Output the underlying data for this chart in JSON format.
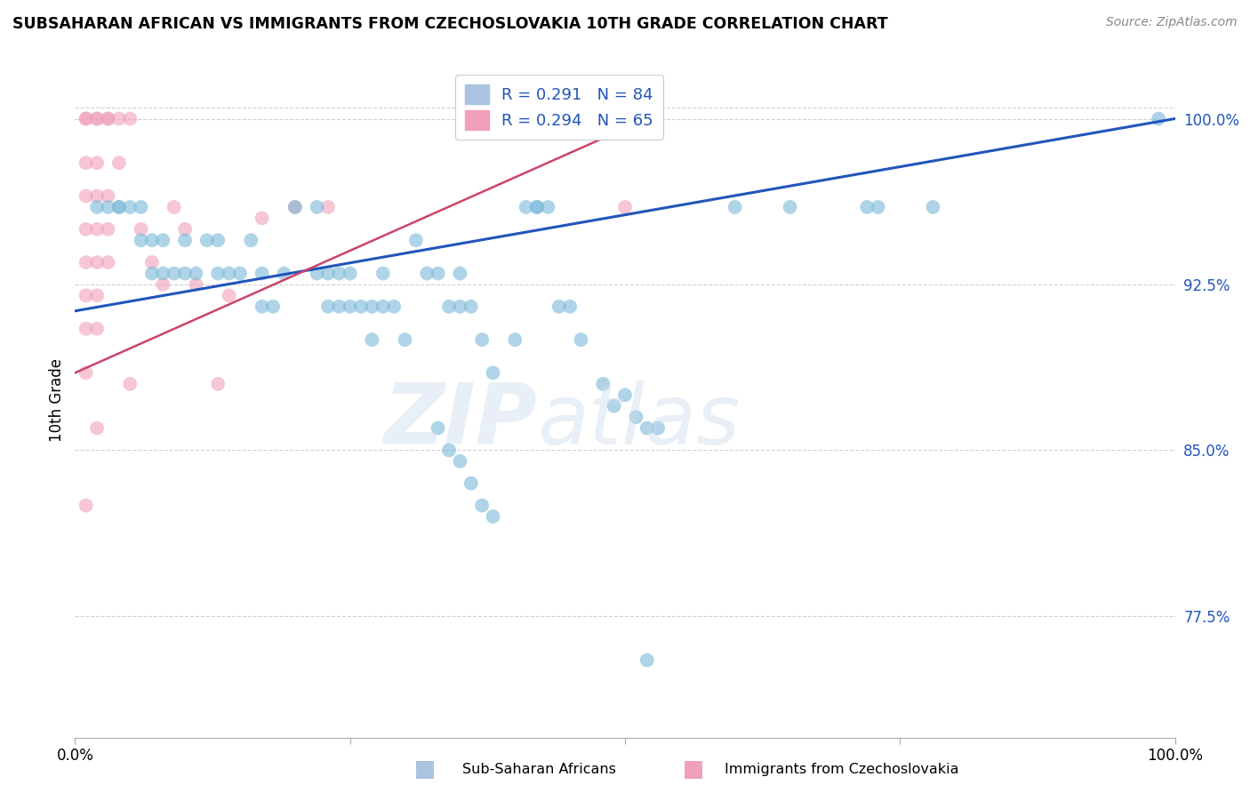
{
  "title": "SUBSAHARAN AFRICAN VS IMMIGRANTS FROM CZECHOSLOVAKIA 10TH GRADE CORRELATION CHART",
  "source": "Source: ZipAtlas.com",
  "ylabel": "10th Grade",
  "ytick_labels": [
    "100.0%",
    "92.5%",
    "85.0%",
    "77.5%"
  ],
  "ytick_values": [
    1.0,
    0.925,
    0.85,
    0.775
  ],
  "xlim": [
    0.0,
    1.0
  ],
  "ylim": [
    0.72,
    1.025
  ],
  "legend_entries": [
    {
      "label": "R = 0.291   N = 84",
      "color": "#aac4e0"
    },
    {
      "label": "R = 0.294   N = 65",
      "color": "#f0a0b8"
    }
  ],
  "blue_color": "#7ab8d8",
  "pink_color": "#f0a0b8",
  "blue_line_color": "#2255bb",
  "pink_line_color": "#cc4466",
  "watermark": "ZIPatlas",
  "blue_scatter": [
    [
      0.02,
      0.96
    ],
    [
      0.03,
      0.96
    ],
    [
      0.04,
      0.96
    ],
    [
      0.04,
      0.96
    ],
    [
      0.05,
      0.96
    ],
    [
      0.06,
      0.96
    ],
    [
      0.06,
      0.945
    ],
    [
      0.07,
      0.945
    ],
    [
      0.07,
      0.93
    ],
    [
      0.08,
      0.945
    ],
    [
      0.08,
      0.93
    ],
    [
      0.09,
      0.93
    ],
    [
      0.1,
      0.93
    ],
    [
      0.1,
      0.945
    ],
    [
      0.11,
      0.93
    ],
    [
      0.12,
      0.945
    ],
    [
      0.13,
      0.93
    ],
    [
      0.13,
      0.945
    ],
    [
      0.14,
      0.93
    ],
    [
      0.15,
      0.93
    ],
    [
      0.16,
      0.945
    ],
    [
      0.17,
      0.93
    ],
    [
      0.17,
      0.915
    ],
    [
      0.18,
      0.915
    ],
    [
      0.19,
      0.93
    ],
    [
      0.2,
      0.96
    ],
    [
      0.22,
      0.96
    ],
    [
      0.22,
      0.93
    ],
    [
      0.23,
      0.93
    ],
    [
      0.23,
      0.915
    ],
    [
      0.24,
      0.93
    ],
    [
      0.24,
      0.915
    ],
    [
      0.25,
      0.93
    ],
    [
      0.25,
      0.915
    ],
    [
      0.26,
      0.915
    ],
    [
      0.27,
      0.915
    ],
    [
      0.27,
      0.9
    ],
    [
      0.28,
      0.93
    ],
    [
      0.28,
      0.915
    ],
    [
      0.29,
      0.915
    ],
    [
      0.3,
      0.9
    ],
    [
      0.31,
      0.945
    ],
    [
      0.32,
      0.93
    ],
    [
      0.33,
      0.93
    ],
    [
      0.34,
      0.915
    ],
    [
      0.35,
      0.93
    ],
    [
      0.35,
      0.915
    ],
    [
      0.36,
      0.915
    ],
    [
      0.37,
      0.9
    ],
    [
      0.38,
      0.885
    ],
    [
      0.4,
      0.9
    ],
    [
      0.41,
      0.96
    ],
    [
      0.42,
      0.96
    ],
    [
      0.42,
      0.96
    ],
    [
      0.43,
      0.96
    ],
    [
      0.44,
      0.915
    ],
    [
      0.45,
      0.915
    ],
    [
      0.46,
      0.9
    ],
    [
      0.48,
      0.88
    ],
    [
      0.49,
      0.87
    ],
    [
      0.33,
      0.86
    ],
    [
      0.34,
      0.85
    ],
    [
      0.35,
      0.845
    ],
    [
      0.36,
      0.835
    ],
    [
      0.37,
      0.825
    ],
    [
      0.38,
      0.82
    ],
    [
      0.5,
      0.875
    ],
    [
      0.51,
      0.865
    ],
    [
      0.52,
      0.86
    ],
    [
      0.53,
      0.86
    ],
    [
      0.52,
      0.755
    ],
    [
      0.6,
      0.96
    ],
    [
      0.65,
      0.96
    ],
    [
      0.72,
      0.96
    ],
    [
      0.73,
      0.96
    ],
    [
      0.78,
      0.96
    ],
    [
      0.985,
      1.0
    ]
  ],
  "pink_scatter": [
    [
      0.01,
      1.0
    ],
    [
      0.01,
      1.0
    ],
    [
      0.02,
      1.0
    ],
    [
      0.02,
      1.0
    ],
    [
      0.03,
      1.0
    ],
    [
      0.03,
      1.0
    ],
    [
      0.04,
      1.0
    ],
    [
      0.01,
      0.98
    ],
    [
      0.02,
      0.98
    ],
    [
      0.01,
      0.965
    ],
    [
      0.02,
      0.965
    ],
    [
      0.03,
      0.965
    ],
    [
      0.01,
      0.95
    ],
    [
      0.02,
      0.95
    ],
    [
      0.03,
      0.95
    ],
    [
      0.01,
      0.935
    ],
    [
      0.02,
      0.935
    ],
    [
      0.03,
      0.935
    ],
    [
      0.01,
      0.92
    ],
    [
      0.02,
      0.92
    ],
    [
      0.01,
      0.905
    ],
    [
      0.02,
      0.905
    ],
    [
      0.04,
      0.98
    ],
    [
      0.05,
      1.0
    ],
    [
      0.06,
      0.95
    ],
    [
      0.07,
      0.935
    ],
    [
      0.08,
      0.925
    ],
    [
      0.09,
      0.96
    ],
    [
      0.1,
      0.95
    ],
    [
      0.11,
      0.925
    ],
    [
      0.14,
      0.92
    ],
    [
      0.01,
      0.885
    ],
    [
      0.02,
      0.86
    ],
    [
      0.05,
      0.88
    ],
    [
      0.13,
      0.88
    ],
    [
      0.01,
      0.825
    ],
    [
      0.17,
      0.955
    ],
    [
      0.2,
      0.96
    ],
    [
      0.23,
      0.96
    ],
    [
      0.5,
      0.96
    ]
  ],
  "blue_line": {
    "x0": 0.0,
    "y0": 0.913,
    "x1": 1.0,
    "y1": 1.0
  },
  "pink_line": {
    "x0": 0.0,
    "y0": 0.885,
    "x1": 0.52,
    "y1": 1.0
  }
}
